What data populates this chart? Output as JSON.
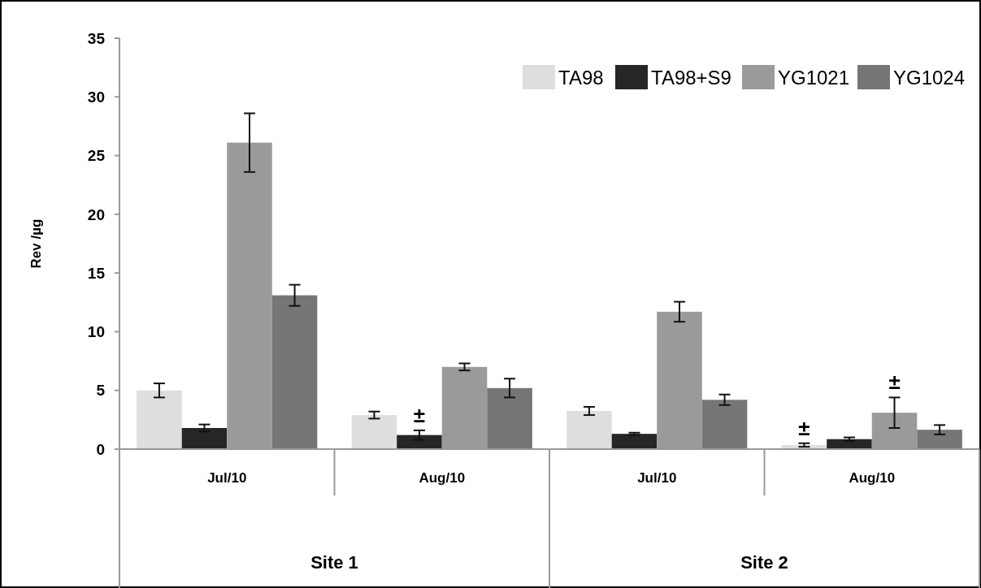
{
  "chart_data": {
    "type": "bar",
    "ylabel": "Rev /µg",
    "categories": [
      "Jul/10",
      "Aug/10",
      "Jul/10",
      "Aug/10"
    ],
    "series": [
      {
        "name": "TA98",
        "color": "#dedede",
        "values": [
          5.0,
          2.9,
          3.25,
          0.35
        ],
        "errors": [
          0.6,
          0.3,
          0.35,
          0.15
        ]
      },
      {
        "name": "TA98+S9",
        "color": "#262626",
        "values": [
          1.8,
          1.2,
          1.3,
          0.85
        ],
        "errors": [
          0.3,
          0.4,
          0.1,
          0.15
        ]
      },
      {
        "name": "YG1021",
        "color": "#9a9a9a",
        "values": [
          26.1,
          7.0,
          11.7,
          3.1
        ],
        "errors": [
          2.5,
          0.3,
          0.85,
          1.3
        ]
      },
      {
        "name": "YG1024",
        "color": "#767676",
        "values": [
          13.1,
          5.2,
          4.2,
          1.65
        ],
        "errors": [
          0.9,
          0.8,
          0.45,
          0.4
        ]
      }
    ],
    "ylim": [
      0,
      35
    ],
    "yticks": [
      0,
      5,
      10,
      15,
      20,
      25,
      30,
      35
    ],
    "grid": false,
    "legend": "top right",
    "annotations": [
      "±",
      "±",
      "±",
      "Site 1",
      "Site 2"
    ]
  }
}
